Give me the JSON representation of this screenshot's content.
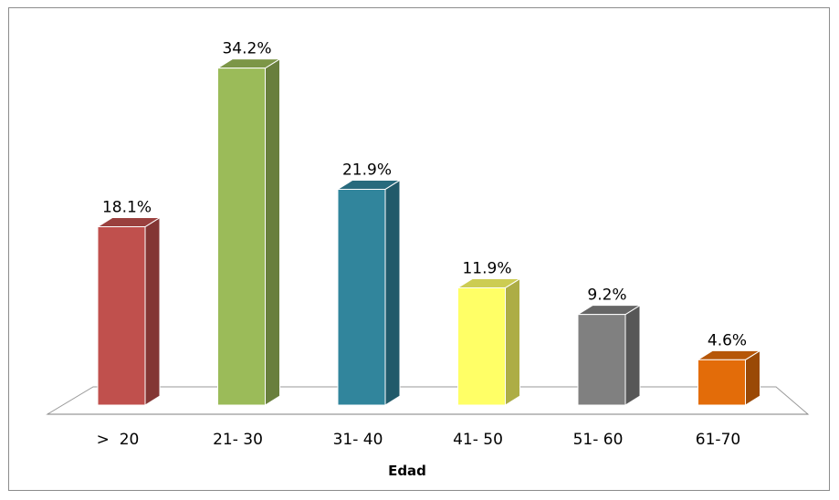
{
  "chart_data": {
    "type": "bar",
    "title": "",
    "xlabel": "Edad",
    "ylabel": "",
    "ylim": [
      0,
      35
    ],
    "grid": false,
    "legend": "none",
    "categories": [
      ">  20",
      "21- 30",
      "31- 40",
      "41- 50",
      "51- 60",
      "61-70"
    ],
    "values": [
      18.1,
      34.2,
      21.9,
      11.9,
      9.2,
      4.6
    ],
    "value_labels": [
      "18.1%",
      "34.2%",
      "21.9%",
      "11.9%",
      "9.2%",
      "4.6%"
    ],
    "colors": [
      "#c0504d",
      "#9bbb59",
      "#31859c",
      "#ffff66",
      "#808080",
      "#e36c09"
    ]
  }
}
